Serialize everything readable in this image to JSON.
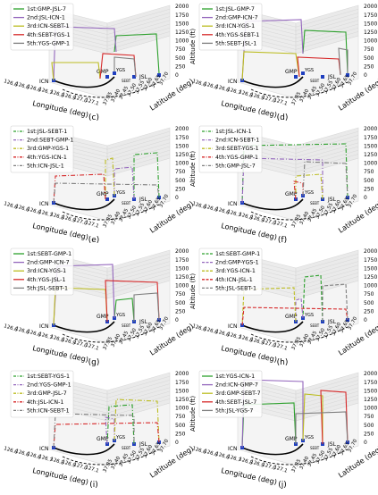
{
  "figure": {
    "axes": {
      "xlabel": "Longitude (deg)",
      "ylabel": "Latitude (deg)",
      "zlabel": "Altitude (ft)",
      "x_ticks": [
        "126.6",
        "126.6",
        "126.6",
        "126.7",
        "126.8",
        "126.9",
        "127.0",
        "127.1"
      ],
      "y_ticks": [
        "37.35",
        "37.40",
        "37.45",
        "37.50",
        "37.55",
        "37.60",
        "37.65",
        "37.70"
      ],
      "z_ticks": [
        "0",
        "250",
        "500",
        "750",
        "1000",
        "1250",
        "1500",
        "1750",
        "2000"
      ],
      "vertiports": [
        "ICN",
        "GMP",
        "YGS",
        "JSL",
        "SEBT"
      ]
    },
    "style_colors": {
      "1st": "#2ca02c",
      "2nd": "#9467bd",
      "3rd": "#bcbd22",
      "4th": "#d62728",
      "5th": "#7f7f7f",
      "ground": "#000000",
      "vertiport_marker": "#1f3fbf"
    },
    "panels": [
      {
        "label": "(c)",
        "line_style": "solid",
        "routes": [
          "1st:GMP-JSL-7",
          "2nd:JSL-ICN-1",
          "3rd:ICN-SEBT-1",
          "4th:SEBT-YGS-1",
          "5th:YGS-GMP-1"
        ]
      },
      {
        "label": "(d)",
        "line_style": "solid",
        "routes": [
          "1st:JSL-GMP-7",
          "2nd:GMP-ICN-7",
          "3rd:ICN-YGS-1",
          "4th:YGS-SEBT-1",
          "5th:SEBT-JSL-1"
        ]
      },
      {
        "label": "(e)",
        "line_style": "dashdot",
        "routes": [
          "1st:JSL-SEBT-1",
          "2nd:SEBT-GMP-1",
          "3rd:GMP-YGS-1",
          "4th:YGS-ICN-1",
          "5th:ICN-JSL-1"
        ]
      },
      {
        "label": "(f)",
        "line_style": "dashdot",
        "routes": [
          "1st:JSL-ICN-1",
          "2nd:ICN-SEBT-1",
          "3rd:SEBT-YGS-1",
          "4th:YGS-GMP-1",
          "5th:GMP-JSL-7"
        ]
      },
      {
        "label": "(g)",
        "line_style": "solid",
        "routes": [
          "1st:SEBT-GMP-1",
          "2nd:GMP-ICN-7",
          "3rd:ICN-YGS-1",
          "4th:YGS-JSL-1",
          "5th:JSL-SEBT-1"
        ]
      },
      {
        "label": "(h)",
        "line_style": "dashed",
        "routes": [
          "1st:SEBT-GMP-1",
          "2nd:GMP-YGS-1",
          "3rd:YGS-ICN-1",
          "4th:ICN-JSL-1",
          "5th:JSL-SEBT-1"
        ]
      },
      {
        "label": "(i)",
        "line_style": "dashdot",
        "routes": [
          "1st:SEBT-YGS-1",
          "2nd:YGS-GMP-1",
          "3rd:GMP-JSL-7",
          "4th:JSL-ICN-1",
          "5th:ICN-SEBT-1"
        ]
      },
      {
        "label": "(j)",
        "line_style": "solid",
        "routes": [
          "1st:YGS-ICN-1",
          "2nd:ICN-GMP-7",
          "3rd:GMP-SEBT-7",
          "4th:SEBT-JSL-7",
          "5th:JSL-YGS-7"
        ]
      }
    ]
  }
}
